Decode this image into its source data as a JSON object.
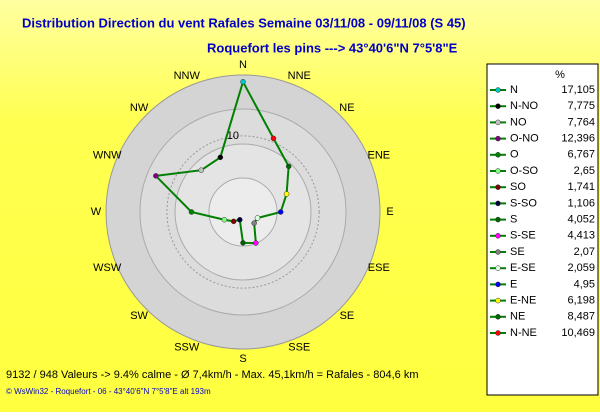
{
  "chart_data": {
    "type": "radar",
    "title": "Distribution Direction du vent Rafales  Semaine 03/11/08 - 09/11/08 (S 45)",
    "subtitle": "Roquefort les pins    --->  43°40'6\"N 7°5'8\"E",
    "direction": "counterclockwise",
    "categories": [
      "N",
      "NNW",
      "NW",
      "WNW",
      "W",
      "WSW",
      "SW",
      "SSW",
      "S",
      "SSE",
      "SE",
      "ESE",
      "E",
      "ENE",
      "NE",
      "NNE"
    ],
    "legend_title": "%",
    "legend_names": [
      "N",
      "N-NO",
      "NO",
      "O-NO",
      "O",
      "O-SO",
      "SO",
      "S-SO",
      "S",
      "S-SE",
      "SE",
      "E-SE",
      "E",
      "E-NE",
      "NE",
      "N-NE"
    ],
    "values": [
      17.105,
      7.775,
      7.764,
      12.396,
      6.767,
      2.65,
      1.741,
      1.106,
      4.052,
      4.413,
      2.07,
      2.059,
      4.95,
      6.198,
      8.487,
      10.469
    ],
    "value_labels": [
      "17,105",
      "7,775",
      "7,764",
      "12,396",
      "6,767",
      "2,65",
      "1,741",
      "1,106",
      "4,052",
      "4,413",
      "2,07",
      "2,059",
      "4,95",
      "6,198",
      "8,487",
      "10,469"
    ],
    "colors": [
      "#00c8c8",
      "#000000",
      "#c0c0c0",
      "#800080",
      "#008000",
      "#80ff80",
      "#800000",
      "#000040",
      "#006000",
      "#ff00ff",
      "#808080",
      "#e0ffe0",
      "#0000ff",
      "#ffff00",
      "#006400",
      "#ff0000"
    ],
    "line_color": "#008000",
    "rlim": [
      0,
      18
    ],
    "rticks": [
      10
    ],
    "footer": "9132 / 948 Valeurs  -> 9.4% calme    -    Ø 7,4km/h  -  Max. 45,1km/h = Rafales   -    804,6 km",
    "credit": "© WsWin32  -  Roquefort - 06  -  43°40'6\"N 7°5'8\"E alt 193m"
  }
}
